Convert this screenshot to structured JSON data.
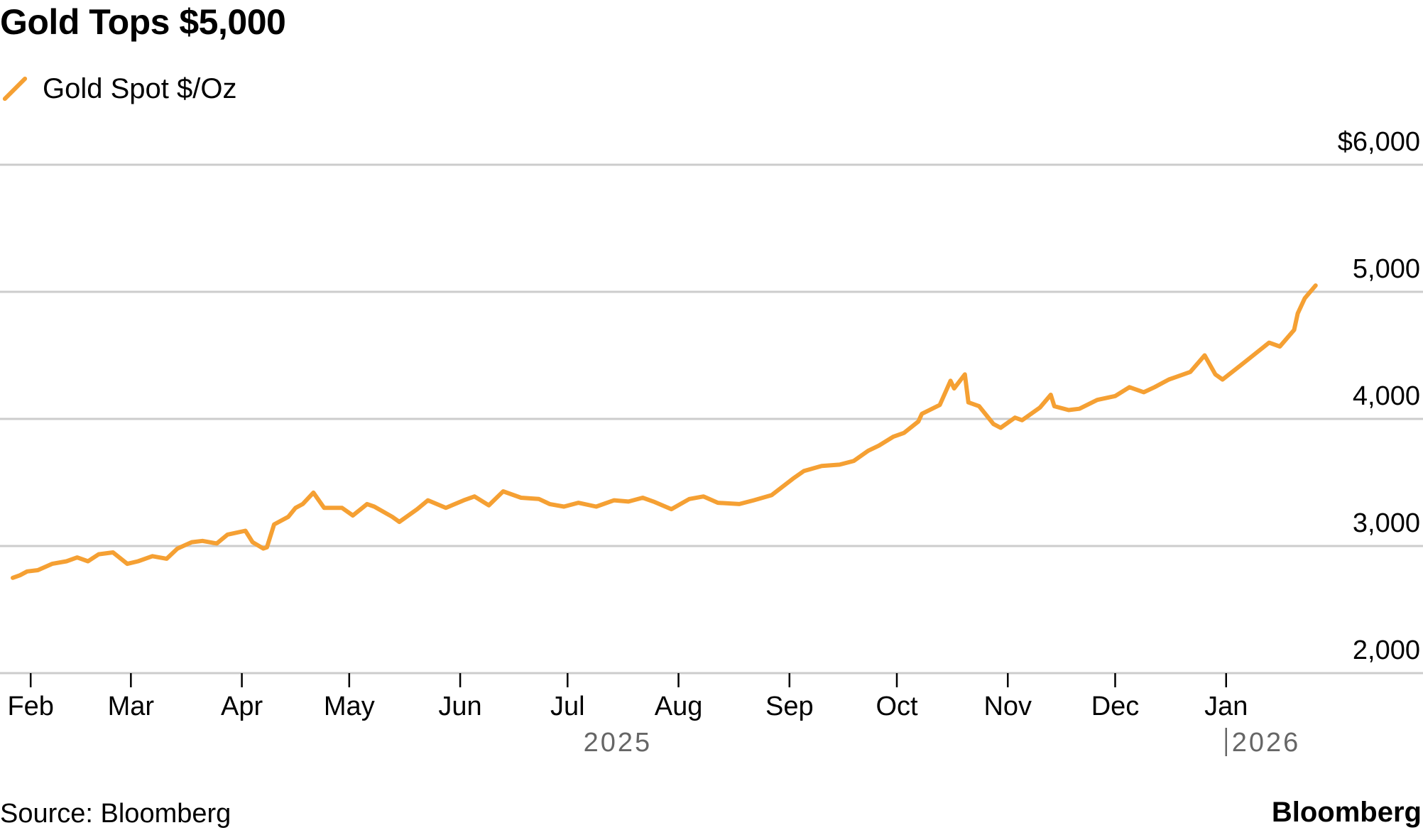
{
  "title": "Gold Tops $5,000",
  "source": "Source: Bloomberg",
  "brand": "Bloomberg",
  "legend": [
    {
      "label": "Gold Spot $/Oz",
      "color": "#f5a033"
    }
  ],
  "colors": {
    "line": "#f5a033",
    "grid": "#cccccc",
    "axis": "#999999",
    "year_label": "#666666"
  },
  "chart_data": {
    "type": "line",
    "title": "Gold Tops $5,000",
    "xlabel": "",
    "ylabel": "",
    "grid": true,
    "legend_placement": "top-left",
    "ylim": [
      2000,
      6000
    ],
    "y_ticks": [
      2000,
      3000,
      4000,
      5000,
      6000
    ],
    "y_tick_labels": [
      "2,000",
      "3,000",
      "4,000",
      "5,000",
      "$6,000"
    ],
    "x_range": [
      "2025-01-27",
      "2026-02-01"
    ],
    "x_ticks": [
      {
        "date": "2025-02-01",
        "label": "Feb"
      },
      {
        "date": "2025-03-01",
        "label": "Mar"
      },
      {
        "date": "2025-04-01",
        "label": "Apr"
      },
      {
        "date": "2025-05-01",
        "label": "May"
      },
      {
        "date": "2025-06-01",
        "label": "Jun"
      },
      {
        "date": "2025-07-01",
        "label": "Jul"
      },
      {
        "date": "2025-08-01",
        "label": "Aug"
      },
      {
        "date": "2025-09-01",
        "label": "Sep"
      },
      {
        "date": "2025-10-01",
        "label": "Oct"
      },
      {
        "date": "2025-11-01",
        "label": "Nov"
      },
      {
        "date": "2025-12-01",
        "label": "Dec"
      },
      {
        "date": "2026-01-01",
        "label": "Jan"
      }
    ],
    "year_labels": [
      {
        "label": "2025",
        "date": "2025-07-15",
        "divider": false
      },
      {
        "label": "2026",
        "date": "2026-01-01",
        "divider": true
      }
    ],
    "series": [
      {
        "name": "Gold Spot $/Oz",
        "color": "#f5a033",
        "x": [
          "2025-01-27",
          "2025-01-29",
          "2025-01-31",
          "2025-02-03",
          "2025-02-07",
          "2025-02-11",
          "2025-02-14",
          "2025-02-17",
          "2025-02-20",
          "2025-02-24",
          "2025-02-28",
          "2025-03-03",
          "2025-03-07",
          "2025-03-11",
          "2025-03-14",
          "2025-03-18",
          "2025-03-21",
          "2025-03-25",
          "2025-03-28",
          "2025-04-02",
          "2025-04-04",
          "2025-04-07",
          "2025-04-08",
          "2025-04-10",
          "2025-04-14",
          "2025-04-16",
          "2025-04-18",
          "2025-04-21",
          "2025-04-22",
          "2025-04-24",
          "2025-04-29",
          "2025-05-02",
          "2025-05-06",
          "2025-05-08",
          "2025-05-13",
          "2025-05-15",
          "2025-05-20",
          "2025-05-23",
          "2025-05-28",
          "2025-06-02",
          "2025-06-05",
          "2025-06-09",
          "2025-06-13",
          "2025-06-18",
          "2025-06-23",
          "2025-06-26",
          "2025-06-30",
          "2025-07-04",
          "2025-07-09",
          "2025-07-14",
          "2025-07-18",
          "2025-07-22",
          "2025-07-25",
          "2025-07-30",
          "2025-08-04",
          "2025-08-08",
          "2025-08-12",
          "2025-08-18",
          "2025-08-22",
          "2025-08-27",
          "2025-09-02",
          "2025-09-05",
          "2025-09-10",
          "2025-09-15",
          "2025-09-19",
          "2025-09-23",
          "2025-09-26",
          "2025-09-30",
          "2025-10-03",
          "2025-10-07",
          "2025-10-08",
          "2025-10-13",
          "2025-10-16",
          "2025-10-17",
          "2025-10-20",
          "2025-10-21",
          "2025-10-24",
          "2025-10-28",
          "2025-10-30",
          "2025-11-03",
          "2025-11-05",
          "2025-11-10",
          "2025-11-13",
          "2025-11-14",
          "2025-11-18",
          "2025-11-21",
          "2025-11-26",
          "2025-12-01",
          "2025-12-05",
          "2025-12-09",
          "2025-12-12",
          "2025-12-16",
          "2025-12-22",
          "2025-12-26",
          "2025-12-29",
          "2025-12-31",
          "2026-01-05",
          "2026-01-09",
          "2026-01-13",
          "2026-01-16",
          "2026-01-20",
          "2026-01-21",
          "2026-01-23",
          "2026-01-26"
        ],
        "values": [
          2750,
          2770,
          2800,
          2810,
          2860,
          2880,
          2910,
          2880,
          2935,
          2950,
          2860,
          2880,
          2920,
          2900,
          2980,
          3030,
          3040,
          3020,
          3090,
          3120,
          3030,
          2980,
          2990,
          3170,
          3230,
          3300,
          3330,
          3420,
          3380,
          3300,
          3300,
          3240,
          3330,
          3310,
          3230,
          3190,
          3290,
          3360,
          3300,
          3360,
          3390,
          3320,
          3430,
          3380,
          3370,
          3330,
          3310,
          3340,
          3310,
          3360,
          3350,
          3380,
          3350,
          3290,
          3370,
          3390,
          3340,
          3330,
          3360,
          3400,
          3530,
          3590,
          3630,
          3640,
          3670,
          3750,
          3790,
          3860,
          3890,
          3980,
          4040,
          4110,
          4300,
          4240,
          4350,
          4130,
          4100,
          3960,
          3930,
          4010,
          3990,
          4090,
          4190,
          4100,
          4070,
          4080,
          4150,
          4180,
          4250,
          4210,
          4250,
          4310,
          4370,
          4500,
          4350,
          4310,
          4420,
          4510,
          4600,
          4570,
          4700,
          4830,
          4950,
          5050
        ]
      }
    ]
  }
}
